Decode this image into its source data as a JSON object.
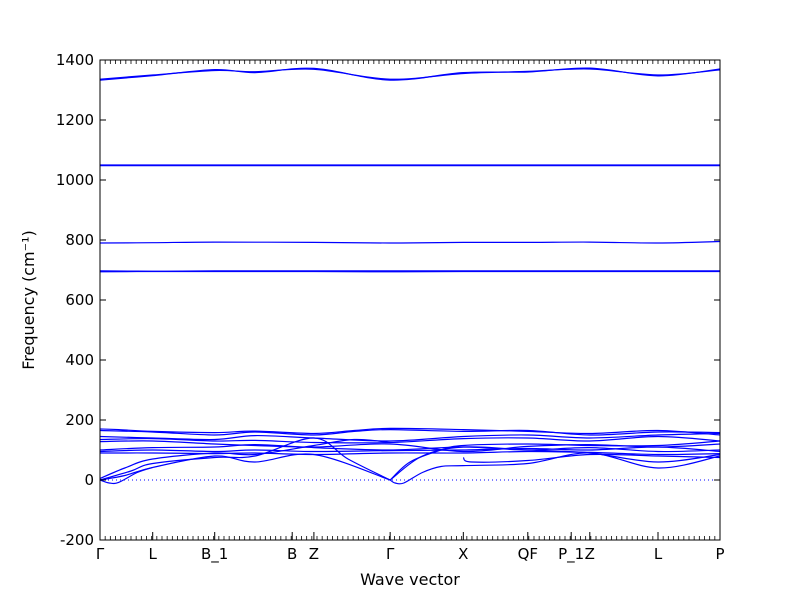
{
  "chart_data": {
    "type": "line",
    "title": "",
    "xlabel": "Wave vector",
    "ylabel": "Frequency (cm⁻¹)",
    "ylim": [
      -200,
      1400
    ],
    "yticks": [
      -200,
      0,
      200,
      400,
      600,
      800,
      1000,
      1200,
      1400
    ],
    "xlim": [
      0,
      1
    ],
    "high_symmetry_points": [
      {
        "label": "Γ",
        "x": 0.0
      },
      {
        "label": "L",
        "x": 0.085
      },
      {
        "label": "B_1",
        "x": 0.185
      },
      {
        "label": "B",
        "x": 0.31
      },
      {
        "label": "Z",
        "x": 0.345
      },
      {
        "label": "Γ",
        "x": 0.468
      },
      {
        "label": "X",
        "x": 0.586
      },
      {
        "label": "QF",
        "x": 0.69
      },
      {
        "label": "P_1",
        "x": 0.76
      },
      {
        "label": "Z",
        "x": 0.79
      },
      {
        "label": "L",
        "x": 0.9
      },
      {
        "label": "P",
        "x": 1.0
      }
    ],
    "zero_line": true,
    "grid": false,
    "series_color": "#0000ff",
    "series": [
      {
        "x": [
          0,
          0.085,
          0.185,
          0.25,
          0.345,
          0.468,
          0.586,
          0.69,
          0.79,
          0.9,
          1.0
        ],
        "values": [
          1333,
          1348,
          1368,
          1358,
          1372,
          1333,
          1358,
          1360,
          1373,
          1347,
          1370
        ]
      },
      {
        "x": [
          0,
          0.085,
          0.185,
          0.25,
          0.345,
          0.468,
          0.586,
          0.69,
          0.79,
          0.9,
          1.0
        ],
        "values": [
          1336,
          1350,
          1365,
          1361,
          1369,
          1336,
          1355,
          1362,
          1370,
          1350,
          1367
        ]
      },
      {
        "x": [
          0,
          0.5,
          1.0
        ],
        "values": [
          1050,
          1050,
          1050
        ]
      },
      {
        "x": [
          0,
          0.5,
          1.0
        ],
        "values": [
          1048,
          1048,
          1048
        ]
      },
      {
        "x": [
          0,
          0.085,
          0.185,
          0.345,
          0.468,
          0.586,
          0.69,
          0.79,
          0.9,
          1.0
        ],
        "values": [
          790,
          791,
          793,
          792,
          790,
          792,
          792,
          793,
          790,
          795
        ]
      },
      {
        "x": [
          0,
          0.085,
          0.185,
          0.345,
          0.468,
          0.586,
          0.69,
          0.79,
          0.9,
          1.0
        ],
        "values": [
          694,
          695,
          695,
          695,
          694,
          695,
          695,
          695,
          695,
          695
        ]
      },
      {
        "x": [
          0,
          0.085,
          0.185,
          0.345,
          0.468,
          0.586,
          0.69,
          0.79,
          0.9,
          1.0
        ],
        "values": [
          697,
          696,
          697,
          697,
          697,
          697,
          697,
          697,
          697,
          697
        ]
      },
      {
        "x": [
          0,
          0.03,
          0.085,
          0.185,
          0.25,
          0.345,
          0.41,
          0.468,
          0.586,
          0.69,
          0.79,
          0.9,
          1.0
        ],
        "values": [
          170,
          168,
          162,
          158,
          163,
          155,
          165,
          172,
          168,
          162,
          155,
          165,
          150
        ]
      },
      {
        "x": [
          0,
          0.085,
          0.185,
          0.25,
          0.345,
          0.41,
          0.468,
          0.586,
          0.69,
          0.79,
          0.9,
          1.0
        ],
        "values": [
          165,
          160,
          150,
          160,
          150,
          162,
          168,
          162,
          165,
          150,
          160,
          158
        ]
      },
      {
        "x": [
          0,
          0.085,
          0.185,
          0.25,
          0.345,
          0.468,
          0.586,
          0.69,
          0.79,
          0.9,
          1.0
        ],
        "values": [
          145,
          140,
          135,
          148,
          140,
          130,
          145,
          150,
          140,
          150,
          155
        ]
      },
      {
        "x": [
          0,
          0.085,
          0.185,
          0.25,
          0.345,
          0.468,
          0.586,
          0.69,
          0.79,
          0.9,
          1.0
        ],
        "values": [
          135,
          138,
          130,
          132,
          125,
          125,
          138,
          140,
          130,
          145,
          130
        ]
      },
      {
        "x": [
          0,
          0.085,
          0.185,
          0.25,
          0.345,
          0.468,
          0.586,
          0.69,
          0.79,
          0.9,
          1.0
        ],
        "values": [
          128,
          130,
          120,
          115,
          110,
          120,
          95,
          112,
          118,
          110,
          120
        ]
      },
      {
        "x": [
          0,
          0.085,
          0.185,
          0.25,
          0.345,
          0.468,
          0.586,
          0.69,
          0.79,
          0.9,
          1.0
        ],
        "values": [
          100,
          108,
          110,
          118,
          108,
          100,
          110,
          100,
          108,
          95,
          100
        ]
      },
      {
        "x": [
          0,
          0.085,
          0.185,
          0.25,
          0.345,
          0.468,
          0.586,
          0.69,
          0.79,
          0.9,
          1.0
        ],
        "values": [
          95,
          100,
          95,
          100,
          95,
          98,
          100,
          105,
          100,
          110,
          95
        ]
      },
      {
        "x": [
          0,
          0.085,
          0.185,
          0.25,
          0.345,
          0.468,
          0.586,
          0.69,
          0.79,
          0.9,
          1.0
        ],
        "values": [
          90,
          90,
          88,
          90,
          85,
          90,
          90,
          95,
          92,
          85,
          88
        ]
      },
      {
        "x": [
          0,
          0.04,
          0.085,
          0.185,
          0.25,
          0.345,
          0.41,
          0.468
        ],
        "values": [
          5,
          40,
          70,
          90,
          85,
          115,
          135,
          125
        ]
      },
      {
        "x": [
          0,
          0.05,
          0.085,
          0.185,
          0.25,
          0.345,
          0.4,
          0.468
        ],
        "values": [
          0,
          30,
          55,
          75,
          80,
          140,
          70,
          0
        ]
      },
      {
        "x": [
          0,
          0.04,
          0.085,
          0.185,
          0.25,
          0.345,
          0.468
        ],
        "values": [
          0,
          15,
          42,
          80,
          60,
          85,
          0
        ]
      },
      {
        "x": [
          0,
          0.015,
          0.03,
          0.06,
          0.085
        ],
        "values": [
          0,
          -10,
          -8,
          25,
          42
        ]
      },
      {
        "x": [
          0.468,
          0.5,
          0.55,
          0.586,
          0.69,
          0.79,
          0.9,
          1.0
        ],
        "values": [
          0,
          60,
          100,
          115,
          120,
          115,
          115,
          130
        ]
      },
      {
        "x": [
          0.468,
          0.52,
          0.586,
          0.69,
          0.79,
          0.9,
          1.0
        ],
        "values": [
          0,
          80,
          110,
          100,
          90,
          60,
          85
        ]
      },
      {
        "x": [
          0.468,
          0.476,
          0.49,
          0.52,
          0.55,
          0.586,
          0.69,
          0.79,
          0.9,
          1.0
        ],
        "values": [
          0,
          -10,
          -10,
          25,
          45,
          48,
          55,
          90,
          40,
          80
        ]
      },
      {
        "x": [
          0.586,
          0.6,
          0.69,
          0.79,
          0.9,
          1.0
        ],
        "values": [
          75,
          60,
          65,
          85,
          80,
          75
        ]
      }
    ]
  }
}
